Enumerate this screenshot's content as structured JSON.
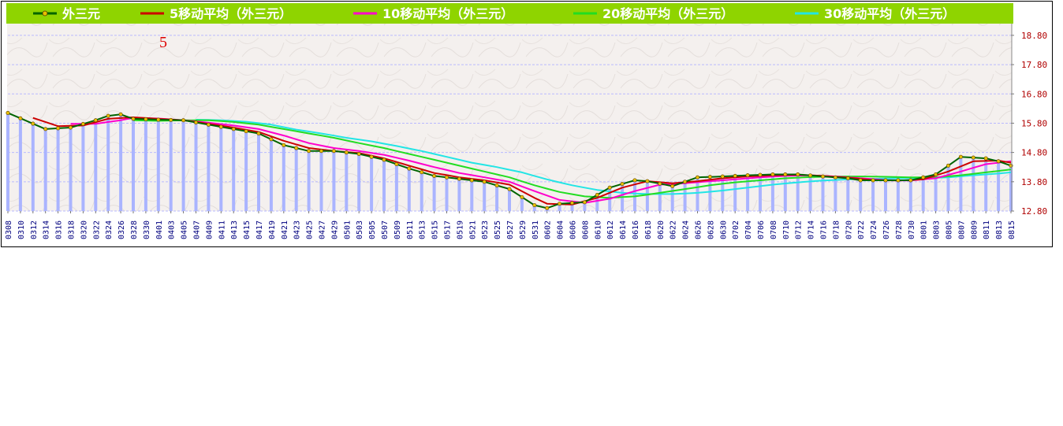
{
  "colors": {
    "legend_bg": "#8fd400",
    "plot_bg": "#f4f0ee",
    "price": "#006400",
    "price_marker": "#e8c000",
    "ma5": "#cc0000",
    "ma10": "#ff00cc",
    "ma20": "#22dd22",
    "ma30": "#22e5e5",
    "volume_bars": "#aab4ff",
    "grid": "#b9b9ff",
    "x_tick_text": "#00007f",
    "y_tick_text": "#b00000",
    "annotation": "#dd0000"
  },
  "chart_data": {
    "type": "line",
    "title": "",
    "xlabel": "",
    "ylabel": "",
    "annotation": "5",
    "ylim": [
      12.8,
      19.2
    ],
    "yticks": [
      "12.80",
      "13.80",
      "14.80",
      "15.80",
      "16.80",
      "17.80",
      "18.80"
    ],
    "grid": true,
    "legend_position": "top",
    "x_tick_labels": [
      "0308",
      "0310",
      "0312",
      "0314",
      "0316",
      "0318",
      "0320",
      "0322",
      "0324",
      "0326",
      "0328",
      "0330",
      "0401",
      "0403",
      "0405",
      "0407",
      "0409",
      "0411",
      "0413",
      "0415",
      "0417",
      "0419",
      "0421",
      "0423",
      "0425",
      "0427",
      "0429",
      "0501",
      "0503",
      "0505",
      "0507",
      "0509",
      "0511",
      "0513",
      "0515",
      "0517",
      "0519",
      "0521",
      "0523",
      "0525",
      "0527",
      "0529",
      "0531",
      "0602",
      "0604",
      "0606",
      "0608",
      "0610",
      "0612",
      "0614",
      "0616",
      "0618",
      "0620",
      "0622",
      "0624",
      "0626",
      "0628",
      "0630",
      "0702",
      "0704",
      "0706",
      "0708",
      "0710",
      "0712",
      "0714",
      "0716",
      "0718",
      "0720",
      "0722",
      "0724",
      "0726",
      "0728",
      "0730",
      "0801",
      "0803",
      "0805",
      "0807",
      "0809",
      "0811",
      "0813",
      "0815"
    ],
    "series": [
      {
        "name": "外三元",
        "anchors": [
          [
            0,
            16.15
          ],
          [
            3,
            15.6
          ],
          [
            5,
            15.65
          ],
          [
            7,
            15.9
          ],
          [
            8,
            16.05
          ],
          [
            9,
            16.1
          ],
          [
            10,
            15.95
          ],
          [
            12,
            15.92
          ],
          [
            14,
            15.9
          ],
          [
            16,
            15.75
          ],
          [
            18,
            15.6
          ],
          [
            20,
            15.45
          ],
          [
            22,
            15.05
          ],
          [
            24,
            14.85
          ],
          [
            26,
            14.85
          ],
          [
            28,
            14.75
          ],
          [
            30,
            14.55
          ],
          [
            32,
            14.25
          ],
          [
            34,
            14.0
          ],
          [
            36,
            13.9
          ],
          [
            38,
            13.8
          ],
          [
            40,
            13.55
          ],
          [
            42,
            13.0
          ],
          [
            43,
            12.9
          ],
          [
            44,
            13.05
          ],
          [
            46,
            13.1
          ],
          [
            48,
            13.6
          ],
          [
            50,
            13.85
          ],
          [
            51,
            13.82
          ],
          [
            53,
            13.65
          ],
          [
            55,
            13.95
          ],
          [
            57,
            13.98
          ],
          [
            59,
            14.02
          ],
          [
            61,
            14.05
          ],
          [
            63,
            14.05
          ],
          [
            65,
            13.98
          ],
          [
            67,
            13.92
          ],
          [
            68,
            13.85
          ],
          [
            70,
            13.85
          ],
          [
            72,
            13.85
          ],
          [
            74,
            14.05
          ],
          [
            76,
            14.65
          ],
          [
            78,
            14.6
          ],
          [
            79,
            14.5
          ],
          [
            80,
            14.35
          ]
        ]
      },
      {
        "name": "5移动平均（外三元）",
        "anchors": [
          [
            2,
            15.98
          ],
          [
            4,
            15.7
          ],
          [
            6,
            15.72
          ],
          [
            8,
            15.95
          ],
          [
            10,
            16.0
          ],
          [
            12,
            15.95
          ],
          [
            14,
            15.9
          ],
          [
            16,
            15.78
          ],
          [
            18,
            15.65
          ],
          [
            20,
            15.5
          ],
          [
            22,
            15.2
          ],
          [
            24,
            14.95
          ],
          [
            26,
            14.85
          ],
          [
            28,
            14.78
          ],
          [
            30,
            14.6
          ],
          [
            32,
            14.35
          ],
          [
            34,
            14.1
          ],
          [
            36,
            13.95
          ],
          [
            38,
            13.85
          ],
          [
            40,
            13.7
          ],
          [
            42,
            13.25
          ],
          [
            43,
            13.05
          ],
          [
            45,
            13.02
          ],
          [
            47,
            13.25
          ],
          [
            49,
            13.6
          ],
          [
            51,
            13.82
          ],
          [
            53,
            13.75
          ],
          [
            55,
            13.82
          ],
          [
            57,
            13.92
          ],
          [
            59,
            13.98
          ],
          [
            61,
            14.02
          ],
          [
            63,
            14.04
          ],
          [
            65,
            14.0
          ],
          [
            67,
            13.94
          ],
          [
            69,
            13.86
          ],
          [
            71,
            13.84
          ],
          [
            73,
            13.88
          ],
          [
            75,
            14.15
          ],
          [
            77,
            14.5
          ],
          [
            79,
            14.52
          ],
          [
            80,
            14.45
          ]
        ]
      },
      {
        "name": "10移动平均（外三元）",
        "anchors": [
          [
            5,
            15.78
          ],
          [
            7,
            15.78
          ],
          [
            9,
            15.9
          ],
          [
            10,
            15.98
          ],
          [
            12,
            15.96
          ],
          [
            14,
            15.9
          ],
          [
            16,
            15.82
          ],
          [
            18,
            15.72
          ],
          [
            20,
            15.6
          ],
          [
            22,
            15.38
          ],
          [
            24,
            15.12
          ],
          [
            26,
            14.95
          ],
          [
            28,
            14.85
          ],
          [
            30,
            14.72
          ],
          [
            32,
            14.52
          ],
          [
            34,
            14.3
          ],
          [
            36,
            14.1
          ],
          [
            38,
            13.95
          ],
          [
            40,
            13.8
          ],
          [
            42,
            13.48
          ],
          [
            44,
            13.18
          ],
          [
            46,
            13.08
          ],
          [
            48,
            13.22
          ],
          [
            50,
            13.48
          ],
          [
            52,
            13.7
          ],
          [
            54,
            13.75
          ],
          [
            56,
            13.82
          ],
          [
            58,
            13.88
          ],
          [
            60,
            13.95
          ],
          [
            62,
            14.0
          ],
          [
            64,
            14.02
          ],
          [
            66,
            13.98
          ],
          [
            68,
            13.92
          ],
          [
            70,
            13.86
          ],
          [
            72,
            13.84
          ],
          [
            74,
            13.92
          ],
          [
            76,
            14.15
          ],
          [
            78,
            14.4
          ],
          [
            80,
            14.5
          ]
        ]
      },
      {
        "name": "20移动平均（外三元）",
        "anchors": [
          [
            10,
            15.9
          ],
          [
            12,
            15.88
          ],
          [
            14,
            15.9
          ],
          [
            16,
            15.9
          ],
          [
            18,
            15.84
          ],
          [
            20,
            15.75
          ],
          [
            22,
            15.6
          ],
          [
            24,
            15.45
          ],
          [
            26,
            15.3
          ],
          [
            28,
            15.12
          ],
          [
            30,
            14.95
          ],
          [
            32,
            14.75
          ],
          [
            34,
            14.55
          ],
          [
            36,
            14.35
          ],
          [
            38,
            14.15
          ],
          [
            40,
            13.95
          ],
          [
            42,
            13.68
          ],
          [
            44,
            13.45
          ],
          [
            46,
            13.3
          ],
          [
            48,
            13.25
          ],
          [
            50,
            13.3
          ],
          [
            52,
            13.42
          ],
          [
            54,
            13.55
          ],
          [
            56,
            13.68
          ],
          [
            58,
            13.78
          ],
          [
            60,
            13.85
          ],
          [
            62,
            13.92
          ],
          [
            64,
            13.96
          ],
          [
            66,
            13.98
          ],
          [
            68,
            13.98
          ],
          [
            70,
            13.97
          ],
          [
            72,
            13.95
          ],
          [
            74,
            13.95
          ],
          [
            76,
            14.02
          ],
          [
            78,
            14.12
          ],
          [
            80,
            14.22
          ]
        ]
      },
      {
        "name": "30移动平均（外三元）",
        "anchors": [
          [
            15,
            15.92
          ],
          [
            17,
            15.9
          ],
          [
            19,
            15.85
          ],
          [
            21,
            15.75
          ],
          [
            23,
            15.58
          ],
          [
            25,
            15.45
          ],
          [
            27,
            15.3
          ],
          [
            29,
            15.18
          ],
          [
            31,
            15.02
          ],
          [
            33,
            14.85
          ],
          [
            35,
            14.65
          ],
          [
            37,
            14.45
          ],
          [
            39,
            14.3
          ],
          [
            41,
            14.12
          ],
          [
            43,
            13.88
          ],
          [
            45,
            13.68
          ],
          [
            47,
            13.52
          ],
          [
            49,
            13.42
          ],
          [
            51,
            13.38
          ],
          [
            53,
            13.38
          ],
          [
            55,
            13.42
          ],
          [
            57,
            13.5
          ],
          [
            59,
            13.6
          ],
          [
            61,
            13.7
          ],
          [
            63,
            13.78
          ],
          [
            65,
            13.84
          ],
          [
            67,
            13.88
          ],
          [
            69,
            13.9
          ],
          [
            71,
            13.92
          ],
          [
            73,
            13.92
          ],
          [
            75,
            13.95
          ],
          [
            77,
            14.02
          ],
          [
            79,
            14.08
          ],
          [
            80,
            14.12
          ]
        ]
      }
    ]
  }
}
